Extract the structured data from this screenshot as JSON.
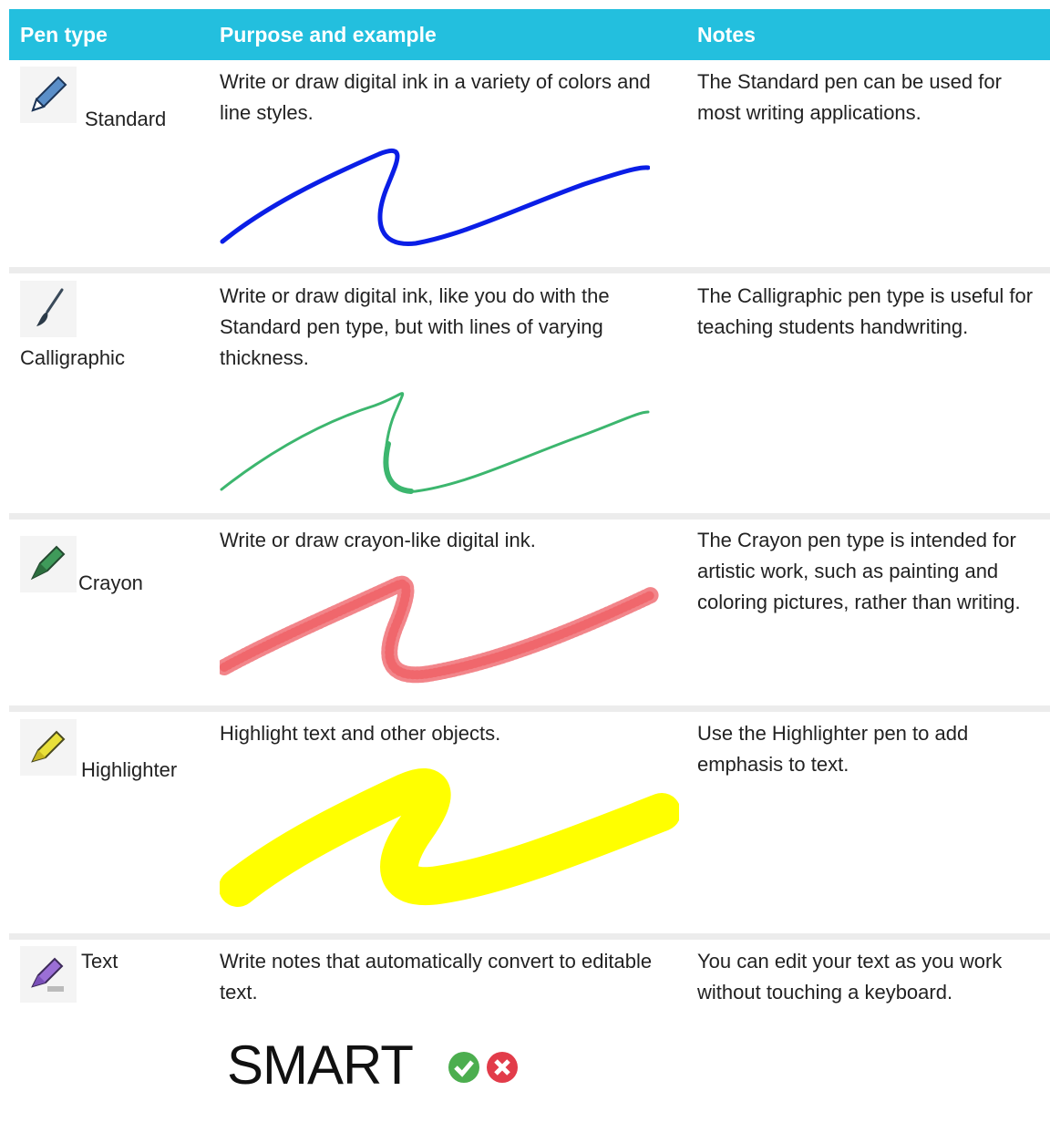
{
  "table": {
    "header": [
      "Pen type",
      "Purpose and example",
      "Notes"
    ],
    "rows": [
      [
        "Standard",
        "Write or draw digital ink in a variety of colors and line styles.",
        "The Standard pen can be used for most writing applications."
      ],
      [
        "Calligraphic",
        "Write or draw digital ink, like you do with the Standard pen type, but with lines of varying thickness.",
        "The Calligraphic pen type is useful for teaching students handwriting."
      ],
      [
        "Crayon",
        "Write or draw crayon-like digital ink.",
        "The Crayon pen type is intended for artistic work, such as painting and coloring pictures, rather than writing."
      ],
      [
        "Highlighter",
        "Highlight text and other objects.",
        "Use the Highlighter pen to add emphasis to text."
      ],
      [
        "Text",
        "Write notes that automatically convert to editable text.",
        "You can edit your text as you work without touching a keyboard."
      ]
    ],
    "text_example": "SMART"
  }
}
